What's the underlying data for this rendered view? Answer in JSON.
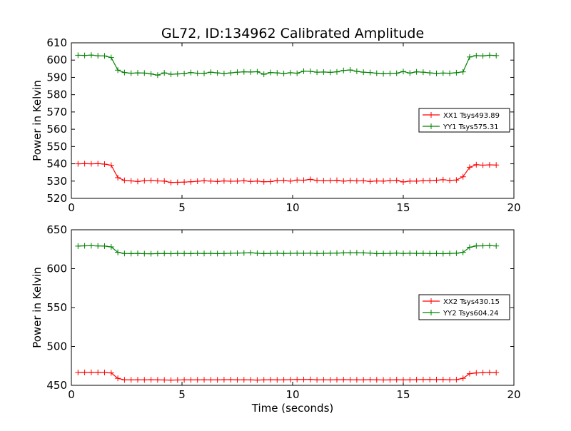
{
  "figure": {
    "title": "GL72, ID:134962 Calibrated Amplitude",
    "xlabel": "Time (seconds)"
  },
  "chart_data": [
    {
      "type": "line",
      "ylabel": "Power in Kelvin",
      "xlim": [
        0,
        20
      ],
      "ylim": [
        520,
        610
      ],
      "xticks": [
        0,
        5,
        10,
        15,
        20
      ],
      "yticks": [
        520,
        530,
        540,
        550,
        560,
        570,
        580,
        590,
        600,
        610
      ],
      "legend_position": "right",
      "series": [
        {
          "name": "XX1 Tsys493.89",
          "color": "#ff0000",
          "x": [
            0.3,
            0.6,
            0.9,
            1.2,
            1.5,
            1.8,
            2.1,
            2.4,
            2.7,
            3.0,
            3.3,
            3.6,
            3.9,
            4.2,
            4.5,
            4.8,
            5.1,
            5.4,
            5.7,
            6.0,
            6.3,
            6.6,
            6.9,
            7.2,
            7.5,
            7.8,
            8.1,
            8.4,
            8.7,
            9.0,
            9.3,
            9.6,
            9.9,
            10.2,
            10.5,
            10.8,
            11.1,
            11.4,
            11.7,
            12.0,
            12.3,
            12.6,
            12.9,
            13.2,
            13.5,
            13.8,
            14.1,
            14.4,
            14.7,
            15.0,
            15.3,
            15.6,
            15.9,
            16.2,
            16.5,
            16.8,
            17.1,
            17.4,
            17.7,
            18.0,
            18.3,
            18.6,
            18.9,
            19.2
          ],
          "y": [
            540.0,
            540.1,
            540.0,
            540.1,
            539.8,
            539.2,
            532.0,
            530.4,
            530.1,
            529.8,
            530.2,
            530.4,
            530.1,
            530.0,
            529.2,
            529.3,
            529.4,
            529.6,
            529.9,
            530.2,
            530.0,
            529.8,
            530.1,
            529.9,
            530.0,
            530.2,
            529.8,
            530.0,
            529.6,
            529.7,
            530.3,
            530.4,
            530.0,
            530.6,
            530.5,
            531.0,
            530.4,
            530.2,
            530.3,
            530.5,
            530.0,
            530.3,
            530.1,
            530.2,
            529.8,
            530.1,
            530.0,
            530.3,
            530.4,
            529.5,
            530.0,
            530.0,
            530.2,
            530.3,
            530.5,
            530.8,
            530.4,
            530.6,
            532.5,
            538.0,
            539.5,
            539.2,
            539.4,
            539.3
          ]
        },
        {
          "name": "YY1 Tsys575.31",
          "color": "#008000",
          "x": [
            0.3,
            0.6,
            0.9,
            1.2,
            1.5,
            1.8,
            2.1,
            2.4,
            2.7,
            3.0,
            3.3,
            3.6,
            3.9,
            4.2,
            4.5,
            4.8,
            5.1,
            5.4,
            5.7,
            6.0,
            6.3,
            6.6,
            6.9,
            7.2,
            7.5,
            7.8,
            8.1,
            8.4,
            8.7,
            9.0,
            9.3,
            9.6,
            9.9,
            10.2,
            10.5,
            10.8,
            11.1,
            11.4,
            11.7,
            12.0,
            12.3,
            12.6,
            12.9,
            13.2,
            13.5,
            13.8,
            14.1,
            14.4,
            14.7,
            15.0,
            15.3,
            15.6,
            15.9,
            16.2,
            16.5,
            16.8,
            17.1,
            17.4,
            17.7,
            18.0,
            18.3,
            18.6,
            18.9,
            19.2
          ],
          "y": [
            602.8,
            602.7,
            602.9,
            602.5,
            602.4,
            601.5,
            594.2,
            592.8,
            592.4,
            592.6,
            592.5,
            592.0,
            591.3,
            592.6,
            591.8,
            592.0,
            592.2,
            592.8,
            592.4,
            592.3,
            593.0,
            592.6,
            592.2,
            592.6,
            593.0,
            593.2,
            593.1,
            593.3,
            591.8,
            592.8,
            592.6,
            592.2,
            592.7,
            592.4,
            593.6,
            593.5,
            593.0,
            593.1,
            592.9,
            593.2,
            594.0,
            594.3,
            593.5,
            593.0,
            592.8,
            592.4,
            592.1,
            592.3,
            592.4,
            593.4,
            592.5,
            593.2,
            593.0,
            592.6,
            592.3,
            592.5,
            592.4,
            592.7,
            593.2,
            601.8,
            602.6,
            602.4,
            602.8,
            602.6
          ]
        }
      ]
    },
    {
      "type": "line",
      "ylabel": "Power in Kelvin",
      "xlim": [
        0,
        20
      ],
      "ylim": [
        450,
        650
      ],
      "xticks": [
        0,
        5,
        10,
        15,
        20
      ],
      "yticks": [
        450,
        500,
        550,
        600,
        650
      ],
      "legend_position": "right",
      "series": [
        {
          "name": "XX2 Tsys430.15",
          "color": "#ff0000",
          "x": [
            0.3,
            0.6,
            0.9,
            1.2,
            1.5,
            1.8,
            2.1,
            2.4,
            2.7,
            3.0,
            3.3,
            3.6,
            3.9,
            4.2,
            4.5,
            4.8,
            5.1,
            5.4,
            5.7,
            6.0,
            6.3,
            6.6,
            6.9,
            7.2,
            7.5,
            7.8,
            8.1,
            8.4,
            8.7,
            9.0,
            9.3,
            9.6,
            9.9,
            10.2,
            10.5,
            10.8,
            11.1,
            11.4,
            11.7,
            12.0,
            12.3,
            12.6,
            12.9,
            13.2,
            13.5,
            13.8,
            14.1,
            14.4,
            14.7,
            15.0,
            15.3,
            15.6,
            15.9,
            16.2,
            16.5,
            16.8,
            17.1,
            17.4,
            17.7,
            18.0,
            18.3,
            18.6,
            18.9,
            19.2
          ],
          "y": [
            466.5,
            466.6,
            466.7,
            466.6,
            466.5,
            466.0,
            459.0,
            457.0,
            457.0,
            457.1,
            457.0,
            457.2,
            457.0,
            456.9,
            456.7,
            456.9,
            457.0,
            457.0,
            457.0,
            457.1,
            457.0,
            457.0,
            457.2,
            457.3,
            457.0,
            457.1,
            457.0,
            456.8,
            457.0,
            457.2,
            457.0,
            457.1,
            457.3,
            457.5,
            457.4,
            457.6,
            457.0,
            457.1,
            457.0,
            457.2,
            457.3,
            457.2,
            457.1,
            457.0,
            457.3,
            457.1,
            456.9,
            457.0,
            457.2,
            457.0,
            457.1,
            457.3,
            457.4,
            457.5,
            457.3,
            457.4,
            457.2,
            457.3,
            459.0,
            465.0,
            466.0,
            466.2,
            466.5,
            466.3
          ]
        },
        {
          "name": "YY2 Tsys604.24",
          "color": "#008000",
          "x": [
            0.3,
            0.6,
            0.9,
            1.2,
            1.5,
            1.8,
            2.1,
            2.4,
            2.7,
            3.0,
            3.3,
            3.6,
            3.9,
            4.2,
            4.5,
            4.8,
            5.1,
            5.4,
            5.7,
            6.0,
            6.3,
            6.6,
            6.9,
            7.2,
            7.5,
            7.8,
            8.1,
            8.4,
            8.7,
            9.0,
            9.3,
            9.6,
            9.9,
            10.2,
            10.5,
            10.8,
            11.1,
            11.4,
            11.7,
            12.0,
            12.3,
            12.6,
            12.9,
            13.2,
            13.5,
            13.8,
            14.1,
            14.4,
            14.7,
            15.0,
            15.3,
            15.6,
            15.9,
            16.2,
            16.5,
            16.8,
            17.1,
            17.4,
            17.7,
            18.0,
            18.3,
            18.6,
            18.9,
            19.2
          ],
          "y": [
            629.0,
            629.4,
            629.5,
            629.2,
            629.0,
            628.0,
            621.0,
            619.5,
            619.4,
            619.6,
            619.3,
            619.2,
            619.4,
            619.5,
            619.3,
            619.6,
            619.5,
            619.4,
            619.7,
            619.5,
            619.6,
            619.4,
            619.5,
            619.7,
            620.0,
            620.2,
            620.5,
            619.8,
            619.4,
            619.6,
            619.8,
            619.5,
            619.7,
            619.8,
            619.7,
            619.9,
            619.5,
            619.7,
            619.8,
            620.0,
            620.3,
            620.5,
            620.4,
            620.3,
            620.0,
            619.3,
            619.5,
            619.6,
            620.0,
            619.5,
            619.8,
            619.6,
            619.7,
            619.4,
            619.5,
            619.3,
            619.6,
            619.8,
            621.0,
            627.5,
            629.3,
            629.4,
            629.6,
            629.2
          ]
        }
      ]
    }
  ]
}
